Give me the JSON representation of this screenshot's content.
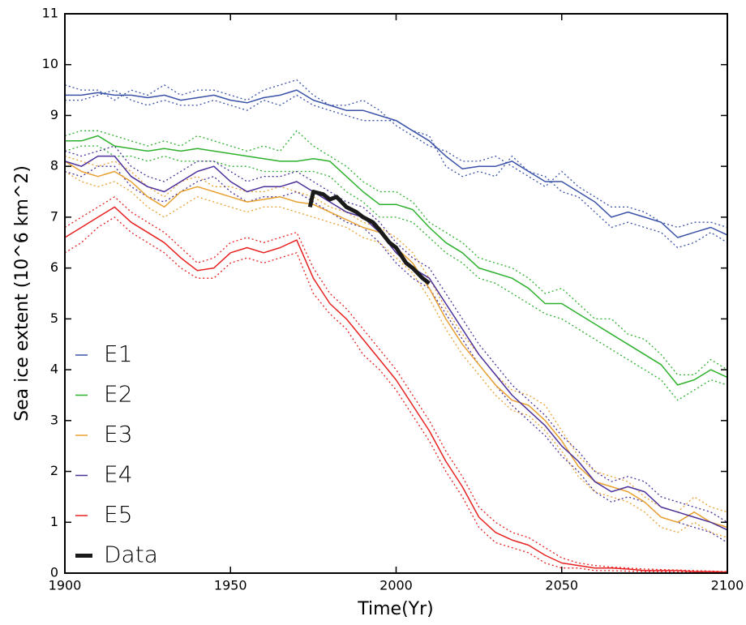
{
  "chart_data": {
    "type": "line",
    "xlabel": "Time(Yr)",
    "ylabel": "Sea ice extent (10^6 km^2)",
    "xlim": [
      1900,
      2100
    ],
    "xticks": [
      1900,
      1950,
      2000,
      2050,
      2100
    ],
    "ylim": [
      0,
      11
    ],
    "yticks": [
      0,
      1,
      2,
      3,
      4,
      5,
      6,
      7,
      8,
      9,
      10,
      11
    ],
    "x": [
      1900,
      1905,
      1910,
      1915,
      1920,
      1925,
      1930,
      1935,
      1940,
      1945,
      1950,
      1955,
      1960,
      1965,
      1970,
      1975,
      1980,
      1985,
      1990,
      1995,
      2000,
      2005,
      2010,
      2015,
      2020,
      2025,
      2030,
      2035,
      2040,
      2045,
      2050,
      2055,
      2060,
      2065,
      2070,
      2075,
      2080,
      2085,
      2090,
      2095,
      2100
    ],
    "series": [
      {
        "name": "E1",
        "color": "#3a52a8",
        "values": [
          9.4,
          9.4,
          9.45,
          9.4,
          9.4,
          9.35,
          9.4,
          9.3,
          9.35,
          9.4,
          9.3,
          9.25,
          9.35,
          9.4,
          9.5,
          9.3,
          9.2,
          9.1,
          9.1,
          9.0,
          8.9,
          8.7,
          8.5,
          8.2,
          7.95,
          8.0,
          8.0,
          8.1,
          7.9,
          7.7,
          7.7,
          7.5,
          7.3,
          7.0,
          7.1,
          7.0,
          6.9,
          6.6,
          6.7,
          6.8,
          6.65
        ],
        "members": [
          [
            9.6,
            9.5,
            9.5,
            9.3,
            9.5,
            9.4,
            9.6,
            9.4,
            9.5,
            9.5,
            9.4,
            9.3,
            9.5,
            9.6,
            9.7,
            9.4,
            9.2,
            9.2,
            9.3,
            9.1,
            8.8,
            8.6,
            8.4,
            8.3,
            8.1,
            8.1,
            8.2,
            8.0,
            7.8,
            7.6,
            7.9,
            7.6,
            7.4,
            7.2,
            7.2,
            7.1,
            6.9,
            6.8,
            6.9,
            6.9,
            6.8
          ],
          [
            9.3,
            9.3,
            9.4,
            9.5,
            9.3,
            9.2,
            9.3,
            9.2,
            9.2,
            9.3,
            9.2,
            9.1,
            9.3,
            9.2,
            9.4,
            9.2,
            9.1,
            9.0,
            8.9,
            8.9,
            8.9,
            8.7,
            8.6,
            8.0,
            7.8,
            7.9,
            7.8,
            8.2,
            7.9,
            7.8,
            7.5,
            7.4,
            7.1,
            6.8,
            6.9,
            6.8,
            6.7,
            6.4,
            6.5,
            6.7,
            6.5
          ]
        ]
      },
      {
        "name": "E2",
        "color": "#2db12d",
        "values": [
          8.5,
          8.5,
          8.6,
          8.4,
          8.35,
          8.3,
          8.35,
          8.3,
          8.35,
          8.3,
          8.25,
          8.2,
          8.15,
          8.1,
          8.1,
          8.15,
          8.1,
          7.8,
          7.5,
          7.25,
          7.25,
          7.15,
          6.8,
          6.5,
          6.3,
          6.0,
          5.9,
          5.8,
          5.6,
          5.3,
          5.3,
          5.1,
          4.9,
          4.7,
          4.5,
          4.3,
          4.1,
          3.7,
          3.8,
          4.0,
          3.85
        ],
        "members": [
          [
            8.6,
            8.7,
            8.7,
            8.6,
            8.5,
            8.4,
            8.5,
            8.4,
            8.6,
            8.5,
            8.4,
            8.3,
            8.4,
            8.3,
            8.7,
            8.4,
            8.2,
            8.0,
            7.7,
            7.5,
            7.5,
            7.3,
            6.9,
            6.7,
            6.5,
            6.2,
            6.1,
            6.0,
            5.8,
            5.5,
            5.6,
            5.3,
            5.0,
            5.0,
            4.7,
            4.6,
            4.3,
            3.9,
            3.9,
            4.2,
            4.0
          ],
          [
            8.3,
            8.4,
            8.4,
            8.2,
            8.2,
            8.1,
            8.2,
            8.1,
            8.1,
            8.1,
            8.0,
            8.0,
            7.9,
            7.9,
            7.9,
            7.9,
            7.8,
            7.5,
            7.3,
            7.0,
            7.0,
            6.9,
            6.6,
            6.3,
            6.1,
            5.8,
            5.7,
            5.5,
            5.3,
            5.1,
            5.0,
            4.8,
            4.6,
            4.4,
            4.2,
            4.0,
            3.8,
            3.4,
            3.6,
            3.8,
            3.7
          ]
        ]
      },
      {
        "name": "E3",
        "color": "#e8a030",
        "values": [
          8.1,
          7.9,
          7.8,
          7.9,
          7.7,
          7.4,
          7.2,
          7.5,
          7.6,
          7.5,
          7.4,
          7.3,
          7.35,
          7.4,
          7.3,
          7.25,
          7.1,
          6.95,
          6.8,
          6.7,
          6.4,
          6.1,
          5.6,
          5.0,
          4.5,
          4.1,
          3.7,
          3.4,
          3.3,
          3.0,
          2.6,
          2.1,
          1.8,
          1.7,
          1.6,
          1.4,
          1.1,
          1.0,
          1.2,
          1.0,
          0.9
        ],
        "members": [
          [
            8.2,
            8.1,
            8.0,
            8.1,
            7.9,
            7.6,
            7.4,
            7.7,
            7.8,
            7.6,
            7.6,
            7.5,
            7.5,
            7.6,
            7.5,
            7.4,
            7.2,
            7.1,
            6.9,
            6.8,
            6.6,
            6.3,
            5.8,
            5.2,
            4.7,
            4.3,
            3.9,
            3.6,
            3.5,
            3.3,
            2.8,
            2.3,
            2.0,
            1.9,
            1.8,
            1.5,
            1.3,
            1.2,
            1.5,
            1.3,
            1.2
          ],
          [
            7.9,
            7.7,
            7.6,
            7.7,
            7.5,
            7.2,
            7.0,
            7.2,
            7.4,
            7.3,
            7.2,
            7.1,
            7.2,
            7.2,
            7.1,
            7.0,
            6.9,
            6.8,
            6.6,
            6.5,
            6.2,
            5.9,
            5.4,
            4.8,
            4.3,
            3.9,
            3.5,
            3.2,
            3.1,
            2.8,
            2.4,
            1.9,
            1.6,
            1.5,
            1.4,
            1.2,
            0.9,
            0.8,
            1.0,
            0.8,
            0.7
          ]
        ]
      },
      {
        "name": "E4",
        "color": "#4b2f9a",
        "values": [
          8.1,
          8.0,
          8.2,
          8.2,
          7.8,
          7.6,
          7.5,
          7.7,
          7.9,
          8.0,
          7.7,
          7.5,
          7.6,
          7.6,
          7.7,
          7.5,
          7.3,
          7.1,
          7.0,
          6.7,
          6.3,
          6.0,
          5.8,
          5.3,
          4.8,
          4.3,
          3.9,
          3.5,
          3.2,
          2.9,
          2.5,
          2.2,
          1.8,
          1.6,
          1.7,
          1.6,
          1.3,
          1.2,
          1.1,
          1.0,
          0.85
        ],
        "members": [
          [
            8.3,
            8.2,
            8.3,
            8.4,
            8.0,
            7.8,
            7.7,
            7.9,
            8.1,
            8.1,
            7.9,
            7.7,
            7.8,
            7.8,
            7.9,
            7.7,
            7.5,
            7.3,
            7.2,
            6.9,
            6.5,
            6.2,
            6.0,
            5.5,
            5.0,
            4.5,
            4.1,
            3.7,
            3.4,
            3.1,
            2.7,
            2.4,
            2.0,
            1.8,
            1.9,
            1.8,
            1.5,
            1.4,
            1.3,
            1.2,
            1.0
          ],
          [
            7.9,
            7.8,
            8.0,
            8.0,
            7.6,
            7.4,
            7.3,
            7.5,
            7.7,
            7.8,
            7.5,
            7.3,
            7.4,
            7.4,
            7.5,
            7.3,
            7.1,
            6.9,
            6.8,
            6.5,
            6.1,
            5.8,
            5.6,
            5.1,
            4.6,
            4.1,
            3.7,
            3.3,
            3.0,
            2.7,
            2.3,
            2.0,
            1.6,
            1.4,
            1.5,
            1.4,
            1.1,
            1.0,
            0.9,
            0.8,
            0.6
          ]
        ]
      },
      {
        "name": "E5",
        "color": "#e82020",
        "values": [
          6.6,
          6.8,
          7.0,
          7.2,
          6.9,
          6.7,
          6.5,
          6.2,
          5.95,
          6.0,
          6.3,
          6.4,
          6.3,
          6.4,
          6.55,
          5.8,
          5.3,
          5.0,
          4.6,
          4.2,
          3.8,
          3.3,
          2.8,
          2.2,
          1.7,
          1.1,
          0.8,
          0.65,
          0.55,
          0.35,
          0.2,
          0.15,
          0.1,
          0.1,
          0.08,
          0.05,
          0.05,
          0.05,
          0.03,
          0.03,
          0.02
        ],
        "members": [
          [
            6.8,
            7.0,
            7.2,
            7.4,
            7.1,
            6.9,
            6.7,
            6.4,
            6.1,
            6.2,
            6.5,
            6.6,
            6.5,
            6.6,
            6.7,
            6.0,
            5.5,
            5.2,
            4.8,
            4.4,
            4.0,
            3.5,
            3.0,
            2.4,
            1.9,
            1.3,
            1.0,
            0.8,
            0.7,
            0.5,
            0.3,
            0.2,
            0.15,
            0.12,
            0.1,
            0.08,
            0.07,
            0.06,
            0.05,
            0.04,
            0.03
          ],
          [
            6.3,
            6.5,
            6.8,
            7.0,
            6.7,
            6.5,
            6.3,
            6.0,
            5.8,
            5.8,
            6.1,
            6.2,
            6.1,
            6.2,
            6.3,
            5.5,
            5.1,
            4.8,
            4.3,
            4.0,
            3.6,
            3.1,
            2.6,
            2.0,
            1.5,
            0.9,
            0.6,
            0.5,
            0.4,
            0.2,
            0.1,
            0.1,
            0.05,
            0.05,
            0.04,
            0.03,
            0.03,
            0.02,
            0.02,
            0.01,
            0.01
          ]
        ]
      },
      {
        "name": "Data",
        "color": "#1a1a1a",
        "legend_text_color": "#999999",
        "x": [
          1974,
          1975,
          1978,
          1980,
          1982,
          1985,
          1988,
          1990,
          1993,
          1995,
          1998,
          2000,
          2003,
          2005,
          2008,
          2010
        ],
        "values": [
          7.2,
          7.5,
          7.45,
          7.35,
          7.4,
          7.2,
          7.1,
          7.0,
          6.9,
          6.75,
          6.5,
          6.4,
          6.1,
          6.0,
          5.8,
          5.7
        ]
      }
    ]
  }
}
